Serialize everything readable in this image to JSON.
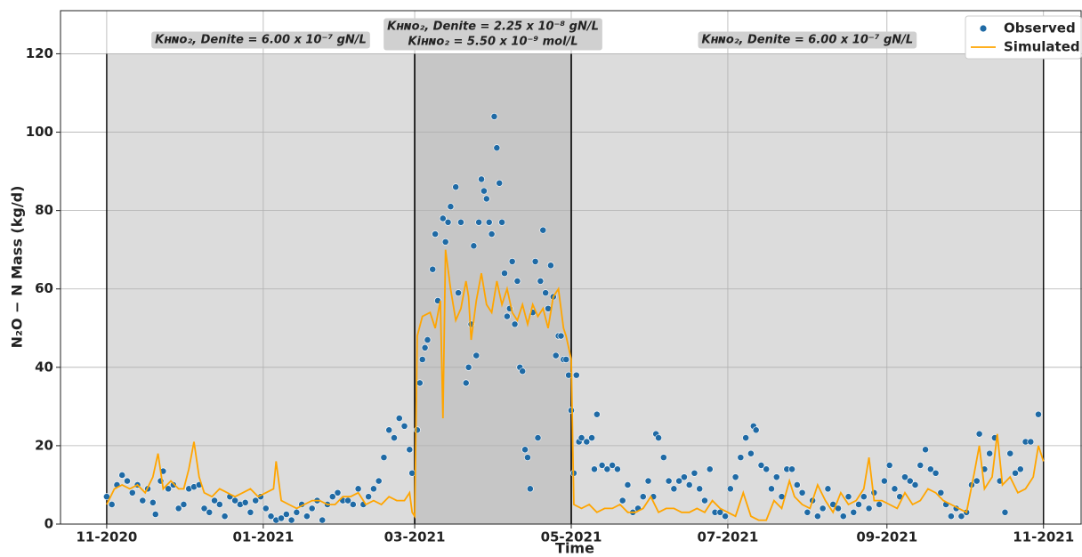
{
  "chart_data": {
    "type": "scatter-line",
    "x_label": "Time",
    "y_label": "N₂O − N Mass (kg/d)",
    "xlim": [
      -18,
      380
    ],
    "ylim": [
      0,
      131
    ],
    "xticks": [
      {
        "value": 0,
        "label": "11-2020"
      },
      {
        "value": 61,
        "label": "01-2021"
      },
      {
        "value": 120,
        "label": "03-2021"
      },
      {
        "value": 181,
        "label": "05-2021"
      },
      {
        "value": 242,
        "label": "07-2021"
      },
      {
        "value": 304,
        "label": "09-2021"
      },
      {
        "value": 365,
        "label": "11-2021"
      }
    ],
    "yticks": [
      0,
      20,
      40,
      60,
      80,
      100,
      120
    ],
    "grid": true,
    "legend": "upper right",
    "regions": [
      {
        "start": 0,
        "end": 120,
        "top": 120,
        "color": "#dcdcdc",
        "label": [
          "Kʜɴᴏ₂, Denite = 6.00 x 10⁻⁷ gN/L"
        ]
      },
      {
        "start": 120,
        "end": 181,
        "top": 120,
        "color": "#c6c6c6",
        "label": [
          "Kʜɴᴏ₂, Denite = 2.25 x 10⁻⁸ gN/L",
          "Kiʜɴᴏ₂ = 5.50 x 10⁻⁹ mol/L"
        ]
      },
      {
        "start": 181,
        "end": 365,
        "top": 120,
        "color": "#dcdcdc",
        "label": [
          "Kʜɴᴏ₂, Denite = 6.00 x 10⁻⁷ gN/L"
        ]
      }
    ],
    "series": [
      {
        "name": "Observed",
        "kind": "scatter",
        "color": "#1f6aa5",
        "x": [
          0,
          2,
          4,
          6,
          8,
          10,
          12,
          14,
          16,
          18,
          19,
          21,
          22,
          24,
          26,
          28,
          30,
          32,
          34,
          36,
          38,
          40,
          42,
          44,
          46,
          48,
          50,
          52,
          54,
          56,
          58,
          60,
          62,
          64,
          66,
          68,
          70,
          72,
          74,
          76,
          78,
          80,
          82,
          84,
          86,
          88,
          90,
          92,
          94,
          96,
          98,
          100,
          102,
          104,
          106,
          108,
          110,
          112,
          114,
          116,
          118,
          119,
          121,
          122,
          123,
          124,
          125,
          127,
          128,
          129,
          131,
          132,
          133,
          134,
          136,
          137,
          138,
          140,
          141,
          142,
          143,
          144,
          145,
          146,
          147,
          148,
          149,
          150,
          151,
          152,
          153,
          154,
          155,
          156,
          157,
          158,
          159,
          160,
          161,
          162,
          163,
          164,
          165,
          166,
          167,
          168,
          169,
          170,
          171,
          172,
          173,
          174,
          175,
          176,
          177,
          178,
          179,
          180,
          181,
          182,
          183,
          184,
          185,
          187,
          189,
          190,
          191,
          193,
          195,
          197,
          199,
          201,
          203,
          205,
          207,
          209,
          211,
          213,
          214,
          215,
          217,
          219,
          221,
          223,
          225,
          227,
          229,
          231,
          233,
          235,
          237,
          239,
          241,
          243,
          245,
          247,
          249,
          251,
          252,
          253,
          255,
          257,
          259,
          261,
          263,
          265,
          267,
          269,
          271,
          273,
          275,
          277,
          279,
          281,
          283,
          285,
          287,
          289,
          291,
          293,
          295,
          297,
          299,
          301,
          303,
          305,
          307,
          309,
          311,
          313,
          315,
          317,
          319,
          321,
          323,
          325,
          327,
          329,
          331,
          333,
          335,
          337,
          339,
          340,
          342,
          344,
          346,
          348,
          350,
          352,
          354,
          356,
          358,
          360,
          363
        ],
        "values": [
          7,
          5,
          10,
          12.5,
          11,
          8,
          10,
          6,
          9,
          5.5,
          2.5,
          11,
          13.5,
          9,
          10,
          4,
          5,
          9,
          9.5,
          10,
          4,
          3,
          6,
          5,
          2,
          7,
          6,
          5,
          5.5,
          3,
          6,
          7,
          4,
          2,
          1,
          1.5,
          2.5,
          1,
          3,
          5,
          2,
          4,
          6,
          1,
          5,
          7,
          8,
          6,
          6,
          5,
          9,
          5,
          7,
          9,
          11,
          17,
          24,
          22,
          27,
          25,
          19,
          13,
          24,
          36,
          42,
          45,
          47,
          65,
          74,
          57,
          78,
          72,
          77,
          81,
          86,
          59,
          77,
          36,
          40,
          51,
          71,
          43,
          77,
          88,
          85,
          83,
          77,
          74,
          104,
          96,
          87,
          77,
          64,
          53,
          55,
          67,
          51,
          62,
          40,
          39,
          19,
          17,
          9,
          54,
          67,
          22,
          62,
          75,
          59,
          55,
          66,
          58,
          43,
          48,
          48,
          42,
          42,
          38,
          29,
          13,
          38,
          21,
          22,
          21,
          22,
          14,
          28,
          15,
          14,
          15,
          14,
          6,
          10,
          3,
          4,
          7,
          11,
          7,
          23,
          22,
          17,
          11,
          9,
          11,
          12,
          10,
          13,
          9,
          6,
          14,
          3,
          3,
          2,
          9,
          12,
          17,
          22,
          18,
          25,
          24,
          15,
          14,
          9,
          12,
          7,
          14,
          14,
          10,
          8,
          3,
          6,
          2,
          4,
          9,
          5,
          4,
          2,
          7,
          3,
          5,
          7,
          4,
          8,
          5,
          11,
          15,
          9,
          7,
          12,
          11,
          10,
          15,
          19,
          14,
          13,
          8,
          5,
          2,
          4,
          2,
          3,
          10,
          11,
          23,
          14,
          18,
          22,
          11,
          3,
          18,
          13,
          14,
          21,
          21,
          28
        ]
      },
      {
        "name": "Simulated",
        "kind": "line",
        "color": "#ffa500",
        "x": [
          0,
          3,
          6,
          9,
          12,
          15,
          18,
          20,
          22,
          25,
          28,
          30,
          32,
          34,
          36,
          38,
          41,
          44,
          47,
          50,
          53,
          56,
          59,
          62,
          65,
          66,
          68,
          71,
          74,
          77,
          80,
          83,
          86,
          89,
          92,
          95,
          98,
          101,
          104,
          107,
          110,
          113,
          116,
          118,
          119,
          120,
          121,
          123,
          126,
          128,
          130,
          131,
          132,
          134,
          136,
          138,
          140,
          141,
          142,
          144,
          146,
          148,
          150,
          152,
          154,
          156,
          158,
          160,
          162,
          164,
          166,
          168,
          170,
          172,
          174,
          176,
          178,
          179,
          181,
          182,
          185,
          188,
          191,
          194,
          197,
          200,
          203,
          206,
          209,
          212,
          215,
          218,
          221,
          224,
          227,
          230,
          233,
          236,
          239,
          242,
          245,
          248,
          251,
          254,
          257,
          260,
          263,
          266,
          268,
          271,
          274,
          277,
          280,
          283,
          286,
          289,
          292,
          295,
          297,
          299,
          302,
          305,
          308,
          311,
          314,
          317,
          320,
          323,
          326,
          329,
          332,
          335,
          338,
          340,
          342,
          345,
          347,
          349,
          352,
          355,
          358,
          361,
          363,
          365
        ],
        "values": [
          5,
          9,
          10,
          9,
          10,
          8,
          12,
          18,
          9,
          11,
          9,
          9,
          14,
          21,
          12,
          8,
          7,
          9,
          8,
          7,
          8,
          9,
          7,
          8,
          9,
          16,
          6,
          5,
          4,
          5,
          6,
          6,
          5,
          5,
          7,
          7,
          8,
          5,
          6,
          5,
          7,
          6,
          6,
          8,
          3,
          2,
          48,
          53,
          54,
          50,
          57,
          27,
          70,
          60,
          52,
          55,
          62,
          58,
          47,
          57,
          64,
          56,
          54,
          62,
          56,
          60,
          54,
          52,
          56,
          51,
          56,
          53,
          55,
          50,
          58,
          60,
          50,
          48,
          42,
          5,
          4,
          5,
          3,
          4,
          4,
          5,
          3,
          3,
          4,
          7,
          3,
          4,
          4,
          3,
          3,
          4,
          3,
          6,
          4,
          3,
          2,
          8,
          2,
          1,
          1,
          6,
          4,
          11,
          7,
          5,
          4,
          10,
          6,
          3,
          8,
          5,
          6,
          9,
          17,
          6,
          6,
          5,
          4,
          8,
          5,
          6,
          9,
          8,
          6,
          5,
          4,
          3,
          13,
          20,
          9,
          12,
          23,
          10,
          12,
          8,
          9,
          12,
          20,
          16
        ]
      }
    ]
  }
}
